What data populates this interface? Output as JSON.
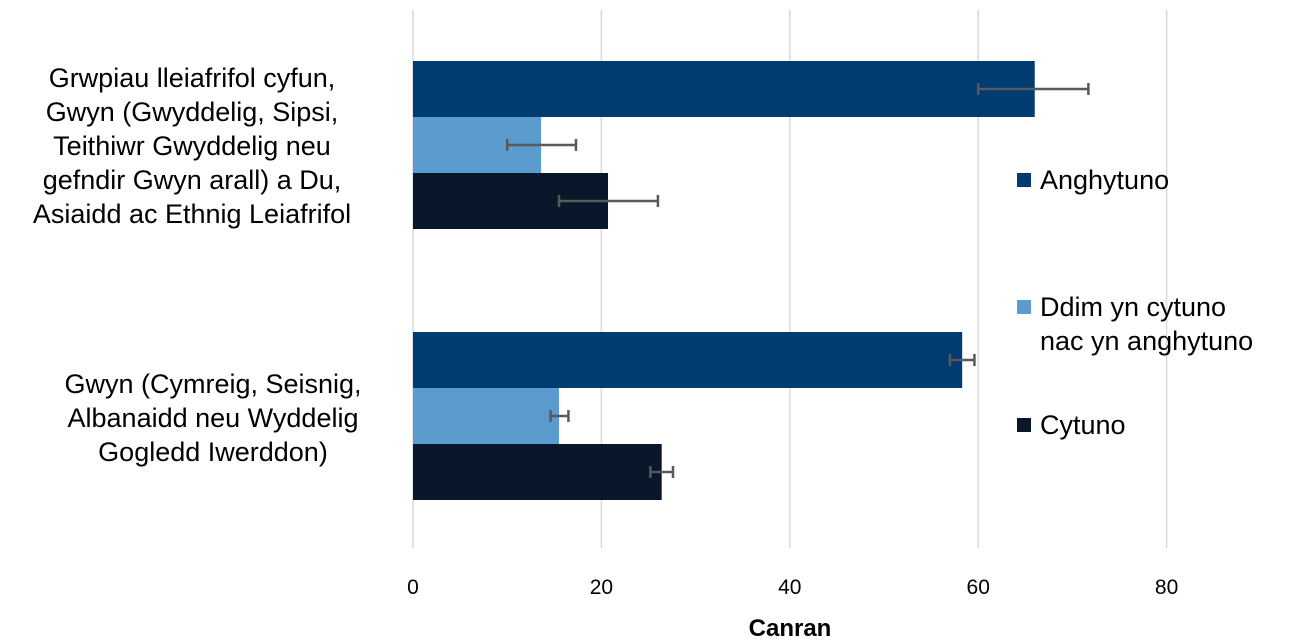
{
  "chart_data": {
    "type": "bar",
    "orientation": "horizontal",
    "xlabel": "Canran",
    "xlim": [
      0,
      80
    ],
    "xticks": [
      "0",
      "20",
      "40",
      "60",
      "80"
    ],
    "grid": true,
    "legend_position": "right",
    "categories": [
      {
        "lines": [
          "Grwpiau lleiafrifol cyfun,",
          "Gwyn (Gwyddelig, Sipsi,",
          "Teithiwr Gwyddelig neu",
          "gefndir Gwyn arall) a Du,",
          "Asiaidd ac Ethnig Leiafrifol"
        ]
      },
      {
        "lines": [
          "Gwyn (Cymreig, Seisnig,",
          "Albanaidd neu Wyddelig",
          "Gogledd Iwerddon)"
        ]
      }
    ],
    "series": [
      {
        "name": "Anghytuno",
        "color": "#003c71",
        "values": [
          66,
          58.3
        ],
        "err_low": [
          60,
          57
        ],
        "err_high": [
          71.7,
          59.6
        ]
      },
      {
        "name": "Ddim yn cytuno nac yn anghytuno",
        "color": "#5b9bcd",
        "values": [
          13.6,
          15.5
        ],
        "err_low": [
          10,
          14.6
        ],
        "err_high": [
          17.3,
          16.5
        ]
      },
      {
        "name": "Cytuno",
        "color": "#09172b",
        "values": [
          20.7,
          26.4
        ],
        "err_low": [
          15.5,
          25.2
        ],
        "err_high": [
          26,
          27.6
        ]
      }
    ],
    "legend": [
      {
        "lines": [
          "Anghytuno"
        ],
        "color": "#003c71"
      },
      {
        "lines": [
          "Ddim yn cytuno",
          "nac yn anghytuno"
        ],
        "color": "#5b9bcd"
      },
      {
        "lines": [
          "Cytuno"
        ],
        "color": "#09172b"
      }
    ]
  }
}
